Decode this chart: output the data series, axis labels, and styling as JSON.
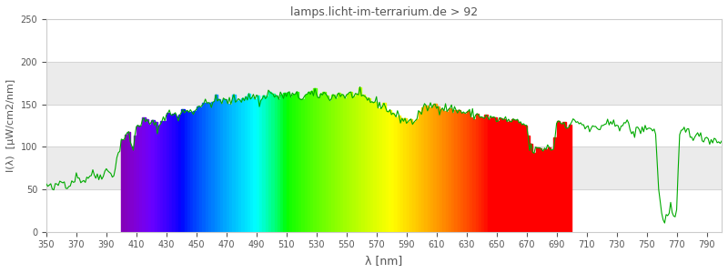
{
  "title": "lamps.licht-im-terrarium.de > 92",
  "xlabel": "λ [nm]",
  "ylabel": "I(λ)  [µW/cm2/nm]",
  "xlim": [
    350,
    800
  ],
  "ylim": [
    0,
    250
  ],
  "yticks": [
    0,
    50,
    100,
    150,
    200,
    250
  ],
  "xticks": [
    350,
    370,
    390,
    410,
    430,
    450,
    470,
    490,
    510,
    530,
    550,
    570,
    590,
    610,
    630,
    650,
    670,
    690,
    710,
    730,
    750,
    770,
    790
  ],
  "spectrum_start": 400,
  "spectrum_end": 700,
  "background_color": "#ffffff",
  "grid_color": "#e0e0e0",
  "line_color": "#00aa00",
  "title_color": "#555555",
  "axis_label_color": "#555555"
}
